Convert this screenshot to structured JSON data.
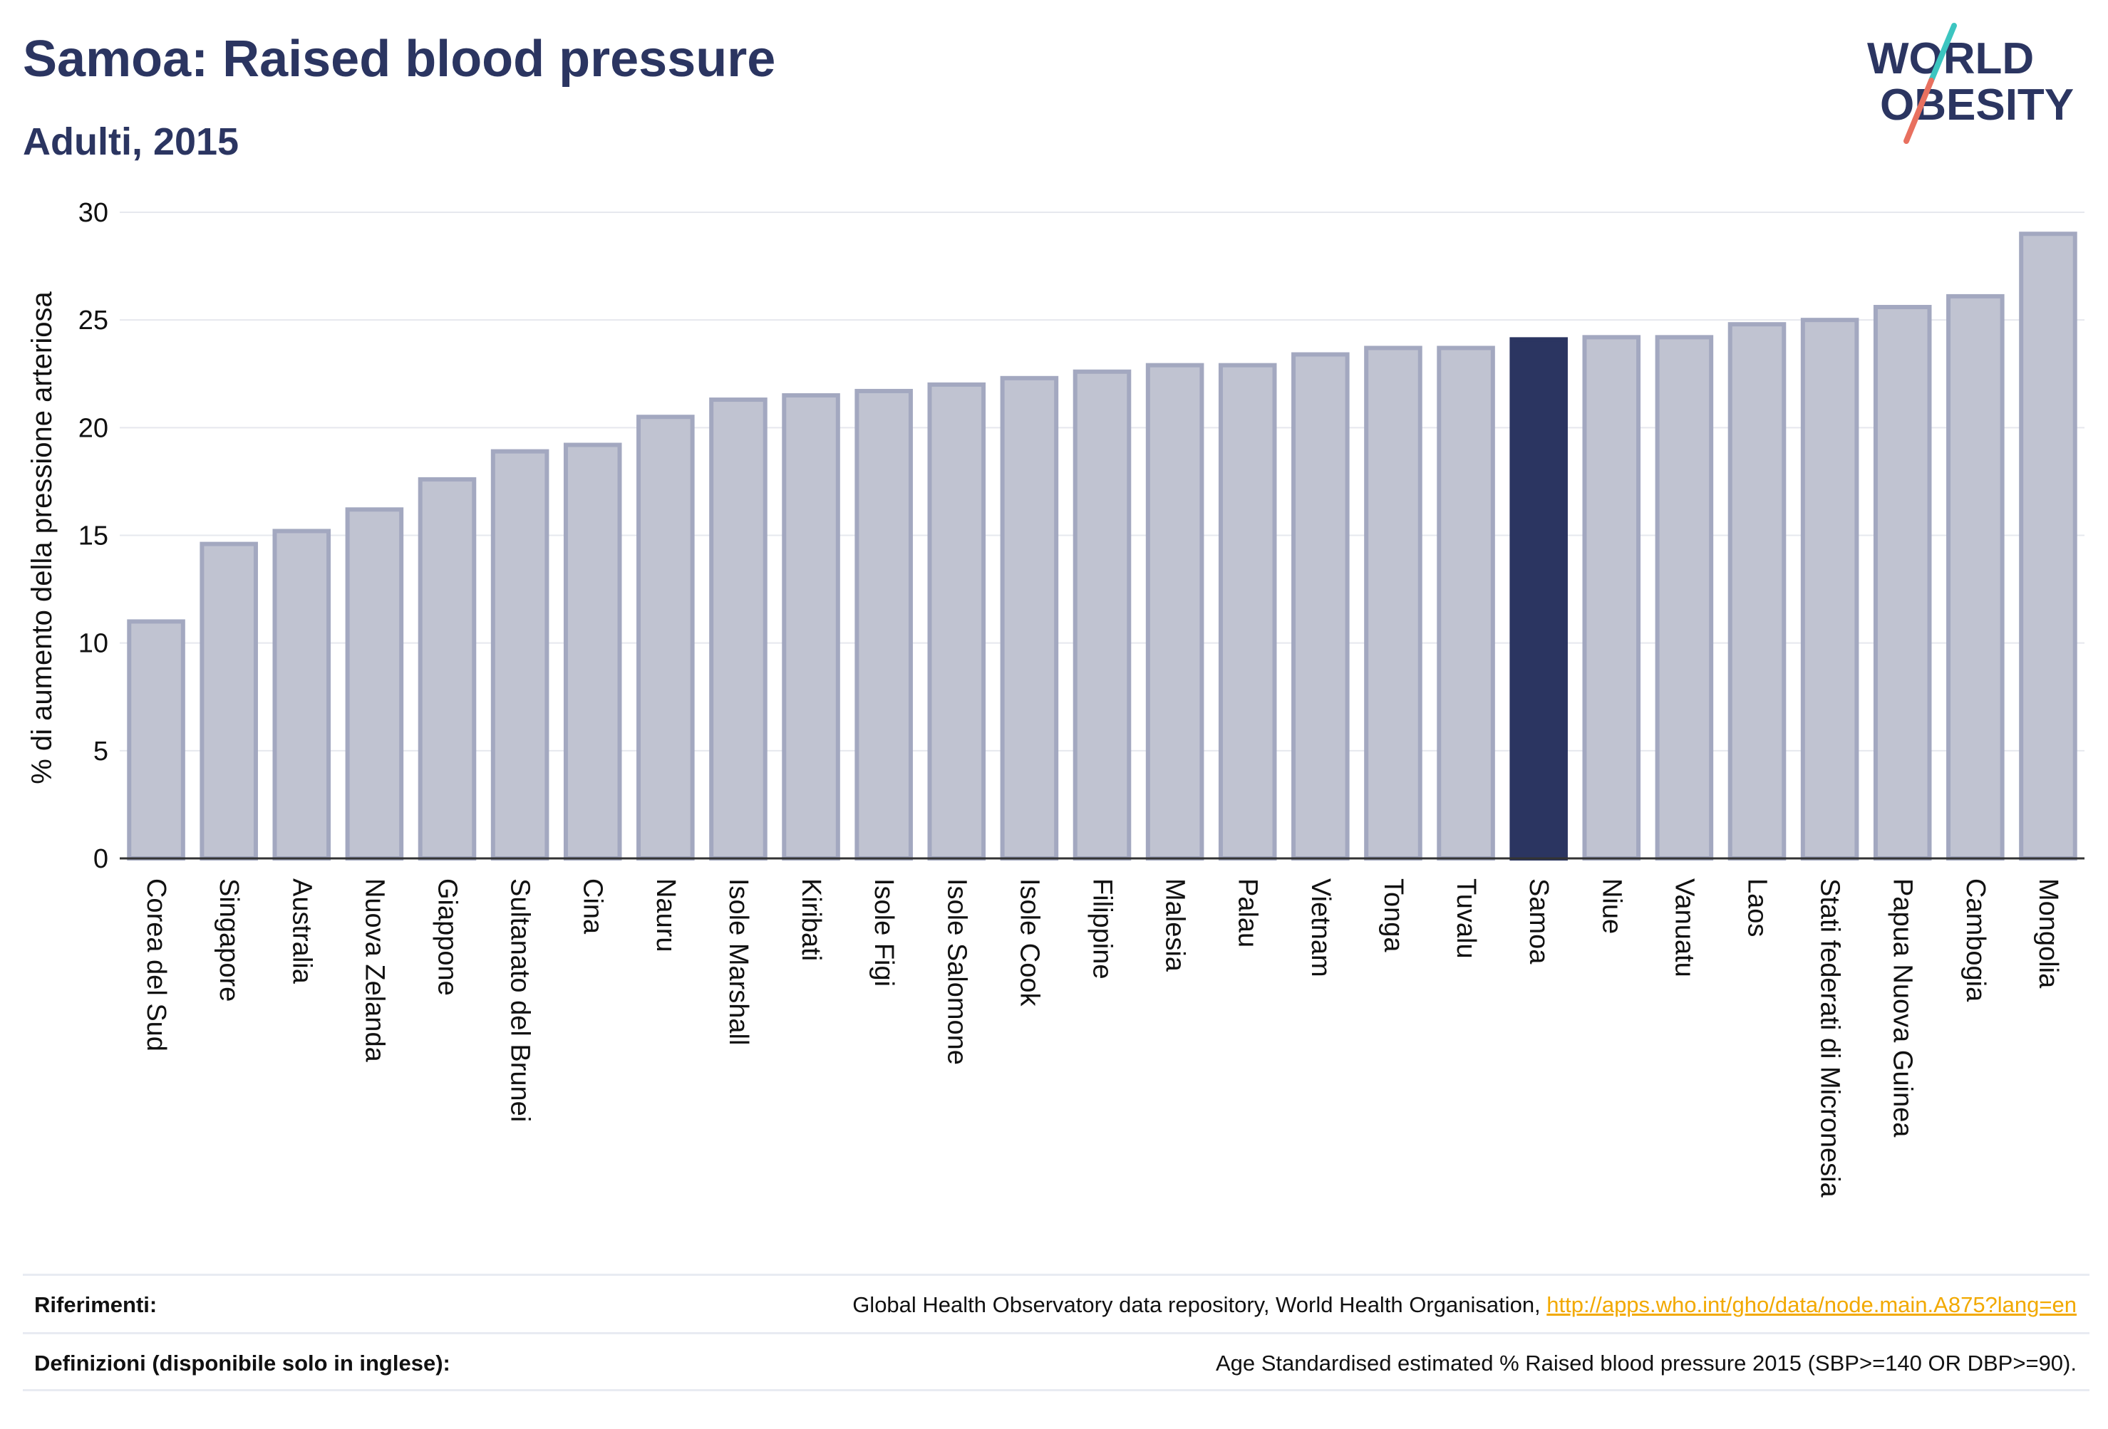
{
  "header": {
    "title": "Samoa: Raised blood pressure",
    "subtitle": "Adulti, 2015"
  },
  "logo": {
    "line1": "WORLD",
    "line2": "OBESITY",
    "colors": {
      "text": "#2b3561",
      "slash_teal": "#3cc5c0",
      "slash_coral": "#e8705f"
    }
  },
  "chart_data": {
    "type": "bar",
    "ylabel": "% di aumento della pressione arteriosa",
    "ylim": [
      0,
      30
    ],
    "yticks": [
      0,
      5,
      10,
      15,
      20,
      25,
      30
    ],
    "grid": true,
    "highlight": "Samoa",
    "colors": {
      "bar_fill": "#c0c3d1",
      "bar_stroke": "#a3a8c0",
      "highlight_fill": "#2b3561",
      "grid": "#e6e8ee",
      "axis": "#333333"
    },
    "categories": [
      "Corea del Sud",
      "Singapore",
      "Australia",
      "Nuova Zelanda",
      "Giappone",
      "Sultanato del Brunei",
      "Cina",
      "Nauru",
      "Isole Marshall",
      "Kiribati",
      "Isole Figi",
      "Isole Salomone",
      "Isole Cook",
      "Filippine",
      "Malesia",
      "Palau",
      "Vietnam",
      "Tonga",
      "Tuvalu",
      "Samoa",
      "Niue",
      "Vanuatu",
      "Laos",
      "Stati federati di Micronesia",
      "Papua Nuova Guinea",
      "Cambogia",
      "Mongolia"
    ],
    "values": [
      11.0,
      14.6,
      15.2,
      16.2,
      17.6,
      18.9,
      19.2,
      20.5,
      21.3,
      21.5,
      21.7,
      22.0,
      22.3,
      22.6,
      22.9,
      22.9,
      23.4,
      23.7,
      23.7,
      24.1,
      24.2,
      24.2,
      24.8,
      25.0,
      25.6,
      26.1,
      29.0
    ]
  },
  "footer": {
    "references_label": "Riferimenti:",
    "references_text": "Global Health Observatory data repository, World Health Organisation, ",
    "references_link": "http://apps.who.int/gho/data/node.main.A875?lang=en",
    "definitions_label": "Definizioni (disponibile solo in inglese):",
    "definitions_text": "Age Standardised estimated % Raised blood pressure 2015 (SBP>=140 OR DBP>=90)."
  }
}
